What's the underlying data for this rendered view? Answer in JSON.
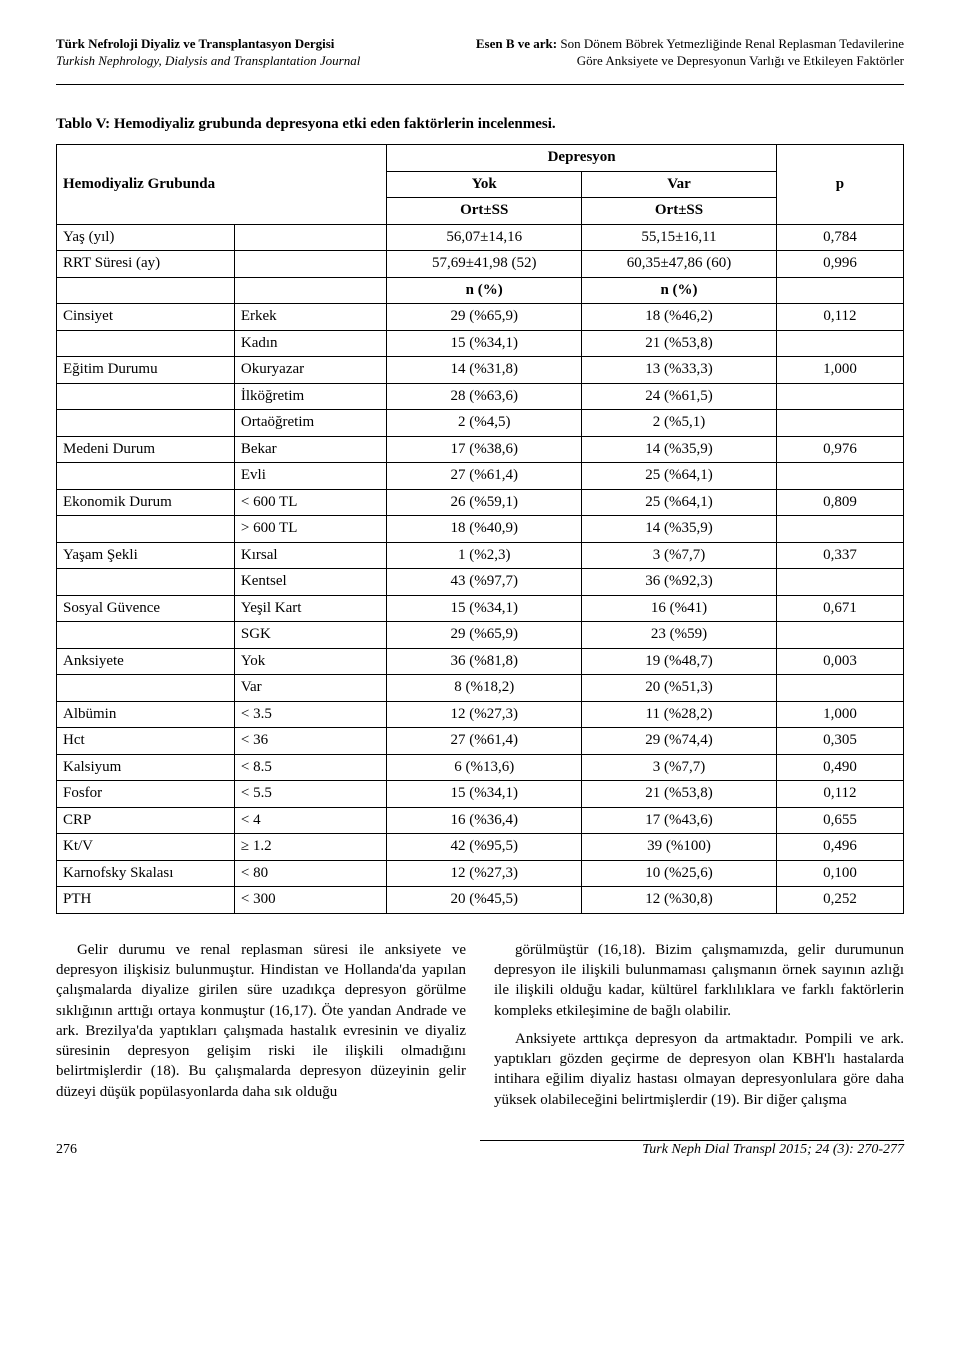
{
  "header": {
    "left_line1": "Türk Nefroloji Diyaliz ve Transplantasyon Dergisi",
    "left_line2": "Turkish Nephrology, Dialysis and Transplantation Journal",
    "right_authors": "Esen B ve ark:",
    "right_title_line1": " Son Dönem Böbrek Yetmezliğinde Renal Replasman Tedavilerine",
    "right_title_line2": "Göre Anksiyete ve Depresyonun Varlığı ve Etkileyen Faktörler"
  },
  "table": {
    "caption": "Tablo V: Hemodiyaliz grubunda depresyona etki eden faktörlerin incelenmesi.",
    "head": {
      "group_label": "Hemodiyaliz Grubunda",
      "depresyon": "Depresyon",
      "yok": "Yok",
      "var": "Var",
      "ortss": "Ort±SS",
      "p": "p",
      "n_pct": "n (%)"
    },
    "rows": [
      {
        "a": "Yaş (yıl)",
        "b": "",
        "c": "56,07±14,16",
        "d": "55,15±16,11",
        "p": "0,784"
      },
      {
        "a": "RRT Süresi (ay)",
        "b": "",
        "c": "57,69±41,98 (52)",
        "d": "60,35±47,86 (60)",
        "p": "0,996"
      },
      {
        "a": "Cinsiyet",
        "b": "Erkek",
        "c": "29 (%65,9)",
        "d": "18 (%46,2)",
        "p": "0,112"
      },
      {
        "a": "",
        "b": "Kadın",
        "c": "15 (%34,1)",
        "d": "21 (%53,8)",
        "p": ""
      },
      {
        "a": "Eğitim Durumu",
        "b": "Okuryazar",
        "c": "14 (%31,8)",
        "d": "13 (%33,3)",
        "p": "1,000"
      },
      {
        "a": "",
        "b": "İlköğretim",
        "c": "28 (%63,6)",
        "d": "24 (%61,5)",
        "p": ""
      },
      {
        "a": "",
        "b": "Ortaöğretim",
        "c": "2 (%4,5)",
        "d": "2 (%5,1)",
        "p": ""
      },
      {
        "a": "Medeni Durum",
        "b": "Bekar",
        "c": "17 (%38,6)",
        "d": "14 (%35,9)",
        "p": "0,976"
      },
      {
        "a": "",
        "b": "Evli",
        "c": "27 (%61,4)",
        "d": "25 (%64,1)",
        "p": ""
      },
      {
        "a": "Ekonomik Durum",
        "b": "< 600 TL",
        "c": "26 (%59,1)",
        "d": "25 (%64,1)",
        "p": "0,809"
      },
      {
        "a": "",
        "b": "> 600 TL",
        "c": "18 (%40,9)",
        "d": "14 (%35,9)",
        "p": ""
      },
      {
        "a": "Yaşam Şekli",
        "b": "Kırsal",
        "c": "1 (%2,3)",
        "d": "3 (%7,7)",
        "p": "0,337"
      },
      {
        "a": "",
        "b": "Kentsel",
        "c": "43 (%97,7)",
        "d": "36 (%92,3)",
        "p": ""
      },
      {
        "a": "Sosyal Güvence",
        "b": "Yeşil Kart",
        "c": "15 (%34,1)",
        "d": "16 (%41)",
        "p": "0,671"
      },
      {
        "a": "",
        "b": "SGK",
        "c": "29 (%65,9)",
        "d": "23 (%59)",
        "p": ""
      },
      {
        "a": "Anksiyete",
        "b": "Yok",
        "c": "36 (%81,8)",
        "d": "19 (%48,7)",
        "p": "0,003"
      },
      {
        "a": "",
        "b": "Var",
        "c": "8 (%18,2)",
        "d": "20 (%51,3)",
        "p": ""
      },
      {
        "a": "Albümin",
        "b": "< 3.5",
        "c": "12 (%27,3)",
        "d": "11 (%28,2)",
        "p": "1,000"
      },
      {
        "a": "Hct",
        "b": "< 36",
        "c": "27 (%61,4)",
        "d": "29 (%74,4)",
        "p": "0,305"
      },
      {
        "a": "Kalsiyum",
        "b": "< 8.5",
        "c": "6 (%13,6)",
        "d": "3 (%7,7)",
        "p": "0,490"
      },
      {
        "a": "Fosfor",
        "b": "< 5.5",
        "c": "15 (%34,1)",
        "d": "21 (%53,8)",
        "p": "0,112"
      },
      {
        "a": "CRP",
        "b": "< 4",
        "c": "16 (%36,4)",
        "d": "17 (%43,6)",
        "p": "0,655"
      },
      {
        "a": "Kt/V",
        "b": "≥ 1.2",
        "c": "42 (%95,5)",
        "d": "39 (%100)",
        "p": "0,496"
      },
      {
        "a": "Karnofsky Skalası",
        "b": "< 80",
        "c": "12 (%27,3)",
        "d": "10 (%25,6)",
        "p": "0,100"
      },
      {
        "a": "PTH",
        "b": "< 300",
        "c": "20 (%45,5)",
        "d": "12 (%30,8)",
        "p": "0,252"
      }
    ]
  },
  "body": {
    "left_p1": "Gelir durumu ve renal replasman süresi ile anksiyete ve depresyon ilişkisiz bulunmuştur. Hindistan ve Hollanda'da yapılan çalışmalarda diyalize girilen süre uzadıkça depresyon görülme sıklığının arttığı ortaya konmuştur (16,17). Öte yandan Andrade ve ark. Brezilya'da yaptıkları çalışmada hastalık evresinin ve diyaliz süresinin depresyon gelişim riski ile ilişkili olmadığını belirtmişlerdir (18). Bu çalışmalarda depresyon düzeyinin gelir düzeyi düşük popülasyonlarda daha sık olduğu",
    "right_p1": "görülmüştür (16,18). Bizim çalışmamızda, gelir durumunun depresyon ile ilişkili bulunmaması çalışmanın örnek sayının azlığı ile ilişkili olduğu kadar, kültürel farklılıklara ve farklı faktörlerin kompleks etkileşimine de bağlı olabilir.",
    "right_p2": "Anksiyete arttıkça depresyon da artmaktadır. Pompili ve ark. yaptıkları gözden geçirme de depresyon olan KBH'lı hastalarda intihara eğilim diyaliz hastası olmayan depresyonlulara göre daha yüksek olabileceğini belirtmişlerdir (19). Bir diğer çalışma"
  },
  "footer": {
    "page": "276",
    "journal": "Turk Neph Dial Transpl 2015; 24 (3): 270-277"
  }
}
